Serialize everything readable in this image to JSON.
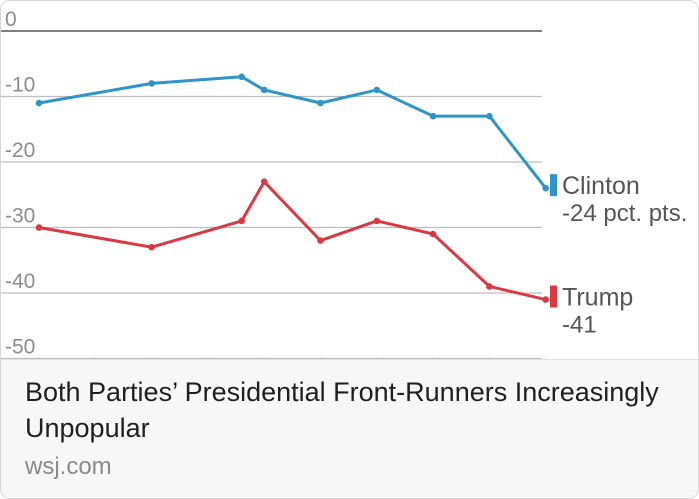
{
  "chart_data": {
    "type": "line",
    "x": [
      1,
      2,
      3,
      4,
      5,
      6,
      7,
      8
    ],
    "ylim": [
      -50,
      0
    ],
    "yticks": [
      0,
      -10,
      -20,
      -30,
      -40,
      -50
    ],
    "grid": true,
    "legend": "right",
    "series": [
      {
        "name": "Clinton",
        "label": "-24 pct. pts.",
        "color": "#2f95c8",
        "points": [
          [
            0,
            -11
          ],
          [
            2,
            -8
          ],
          [
            3.6,
            -7
          ],
          [
            4,
            -9
          ],
          [
            5,
            -11
          ],
          [
            6,
            -9
          ],
          [
            7,
            -13
          ],
          [
            8,
            -13
          ],
          [
            9,
            -24
          ]
        ]
      },
      {
        "name": "Trump",
        "label": "-41",
        "color": "#d93a41",
        "points": [
          [
            0,
            -30
          ],
          [
            2,
            -33
          ],
          [
            3.6,
            -29
          ],
          [
            4,
            -23
          ],
          [
            5,
            -32
          ],
          [
            6,
            -29
          ],
          [
            7,
            -31
          ],
          [
            8,
            -39
          ],
          [
            9,
            -41
          ]
        ]
      }
    ]
  },
  "caption": {
    "title": "Both Parties’ Presidential Front-Runners Increasingly Unpopular",
    "source": "wsj.com"
  }
}
